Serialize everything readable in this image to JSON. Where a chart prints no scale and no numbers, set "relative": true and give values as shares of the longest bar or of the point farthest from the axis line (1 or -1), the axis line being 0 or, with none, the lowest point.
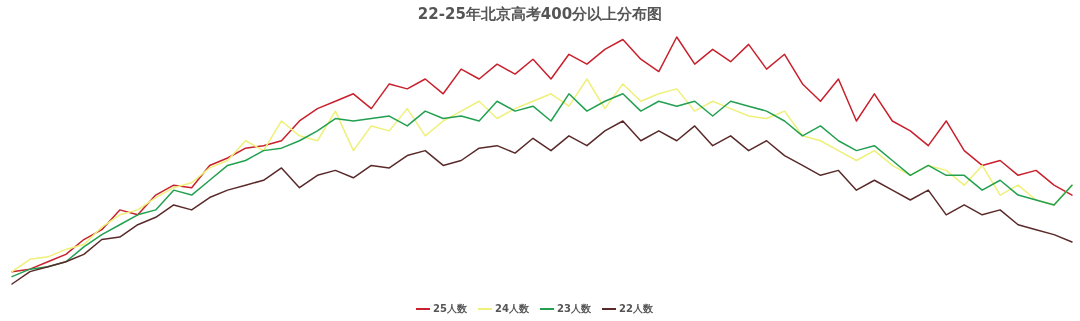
{
  "chart_data": {
    "type": "line",
    "title": "22-25年北京高考400分以上分布图",
    "relative": true,
    "legend": "bottom",
    "marker": "none",
    "line_style": "solid",
    "categories": [
      null,
      null,
      null,
      null,
      null,
      null,
      null,
      null,
      null,
      null,
      null,
      null,
      null,
      null,
      null,
      null,
      null,
      null,
      null,
      null,
      null,
      null,
      null,
      null,
      null,
      null,
      null,
      null,
      null,
      null,
      null,
      null,
      null,
      null,
      null,
      null,
      null,
      null,
      null,
      null,
      null,
      null,
      null,
      null,
      null,
      null,
      null,
      null,
      null,
      null,
      null,
      null,
      null,
      null,
      null,
      null,
      null,
      null,
      null,
      null
    ],
    "series": [
      {
        "name": "25人数",
        "color": "#c8202c",
        "values": [
          0.05,
          0.06,
          0.09,
          0.12,
          0.18,
          0.22,
          0.3,
          0.28,
          0.36,
          0.4,
          0.39,
          0.48,
          0.51,
          0.55,
          0.56,
          0.58,
          0.66,
          0.71,
          0.74,
          0.77,
          0.71,
          0.81,
          0.79,
          0.83,
          0.77,
          0.87,
          0.83,
          0.89,
          0.85,
          0.91,
          0.83,
          0.93,
          0.89,
          0.95,
          0.99,
          0.91,
          0.86,
          1.0,
          0.89,
          0.95,
          0.9,
          0.97,
          0.87,
          0.93,
          0.81,
          0.74,
          0.83,
          0.66,
          0.77,
          0.66,
          0.62,
          0.56,
          0.66,
          0.54,
          0.48,
          0.5,
          0.44,
          0.46,
          0.4,
          0.36
        ]
      },
      {
        "name": "24人数",
        "color": "#eef07a",
        "values": [
          0.05,
          0.1,
          0.11,
          0.14,
          0.16,
          0.23,
          0.28,
          0.3,
          0.35,
          0.39,
          0.41,
          0.47,
          0.5,
          0.58,
          0.54,
          0.66,
          0.6,
          0.58,
          0.7,
          0.54,
          0.64,
          0.62,
          0.71,
          0.6,
          0.66,
          0.7,
          0.74,
          0.67,
          0.71,
          0.74,
          0.77,
          0.72,
          0.83,
          0.71,
          0.81,
          0.74,
          0.77,
          0.79,
          0.7,
          0.74,
          0.71,
          0.68,
          0.67,
          0.7,
          0.6,
          0.58,
          0.54,
          0.5,
          0.54,
          0.48,
          0.44,
          0.48,
          0.46,
          0.4,
          0.48,
          0.36,
          0.4,
          0.34,
          0.32,
          0.4
        ]
      },
      {
        "name": "23人数",
        "color": "#22a050",
        "values": [
          0.03,
          0.06,
          0.07,
          0.09,
          0.15,
          0.2,
          0.24,
          0.28,
          0.3,
          0.38,
          0.36,
          0.42,
          0.48,
          0.5,
          0.54,
          0.55,
          0.58,
          0.62,
          0.67,
          0.66,
          0.67,
          0.68,
          0.64,
          0.7,
          0.67,
          0.68,
          0.66,
          0.74,
          0.7,
          0.72,
          0.66,
          0.77,
          0.7,
          0.74,
          0.77,
          0.7,
          0.74,
          0.72,
          0.74,
          0.68,
          0.74,
          0.72,
          0.7,
          0.66,
          0.6,
          0.64,
          0.58,
          0.54,
          0.56,
          0.5,
          0.44,
          0.48,
          0.44,
          0.44,
          0.38,
          0.42,
          0.36,
          0.34,
          0.32,
          0.4
        ]
      },
      {
        "name": "22人数",
        "color": "#5a2a2a",
        "values": [
          0.0,
          0.05,
          0.07,
          0.09,
          0.12,
          0.18,
          0.19,
          0.24,
          0.27,
          0.32,
          0.3,
          0.35,
          0.38,
          0.4,
          0.42,
          0.47,
          0.39,
          0.44,
          0.46,
          0.43,
          0.48,
          0.47,
          0.52,
          0.54,
          0.48,
          0.5,
          0.55,
          0.56,
          0.53,
          0.59,
          0.54,
          0.6,
          0.56,
          0.62,
          0.66,
          0.58,
          0.62,
          0.58,
          0.64,
          0.56,
          0.6,
          0.54,
          0.58,
          0.52,
          0.48,
          0.44,
          0.46,
          0.38,
          0.42,
          0.38,
          0.34,
          0.38,
          0.28,
          0.32,
          0.28,
          0.3,
          0.24,
          0.22,
          0.2,
          0.17
        ]
      }
    ]
  }
}
